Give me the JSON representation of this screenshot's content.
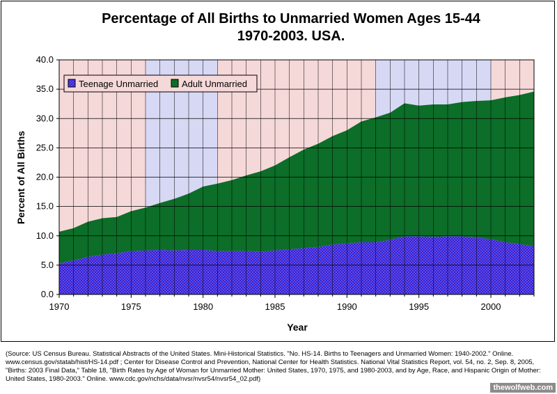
{
  "chart_data": {
    "type": "area",
    "stacked": true,
    "title_line1": "Percentage of All Births to Unmarried Women Ages 15-44",
    "title_line2": "1970-2003. USA.",
    "xlabel": "Year",
    "ylabel": "Percent of All Births",
    "xlim": [
      1970,
      2003
    ],
    "ylim": [
      0,
      40
    ],
    "x_ticks": [
      "1970",
      "1975",
      "1980",
      "1985",
      "1990",
      "1995",
      "2000"
    ],
    "y_ticks": [
      "0.0",
      "5.0",
      "10.0",
      "15.0",
      "20.0",
      "25.0",
      "30.0",
      "35.0",
      "40.0"
    ],
    "grid": true,
    "legend_position": "top-left",
    "x": [
      1970,
      1971,
      1972,
      1973,
      1974,
      1975,
      1976,
      1977,
      1978,
      1979,
      1980,
      1981,
      1982,
      1983,
      1984,
      1985,
      1986,
      1987,
      1988,
      1989,
      1990,
      1991,
      1992,
      1993,
      1994,
      1995,
      1996,
      1997,
      1998,
      1999,
      2000,
      2001,
      2002,
      2003
    ],
    "series": [
      {
        "name": "Teenage Unmarried",
        "values": [
          5.3,
          5.8,
          6.4,
          6.8,
          7.0,
          7.4,
          7.5,
          7.6,
          7.5,
          7.6,
          7.6,
          7.4,
          7.4,
          7.4,
          7.3,
          7.5,
          7.7,
          7.9,
          8.1,
          8.5,
          8.7,
          8.9,
          8.9,
          9.3,
          9.9,
          9.9,
          9.8,
          9.9,
          9.9,
          9.7,
          9.4,
          8.9,
          8.6,
          8.2
        ],
        "color": "#2626e0"
      },
      {
        "name": "Adult Unmarried",
        "values": [
          5.4,
          5.5,
          6.0,
          6.2,
          6.2,
          6.8,
          7.3,
          8.0,
          8.8,
          9.6,
          10.8,
          11.5,
          12.1,
          12.9,
          13.7,
          14.5,
          15.7,
          16.8,
          17.6,
          18.5,
          19.3,
          20.6,
          21.3,
          21.7,
          22.7,
          22.3,
          22.6,
          22.5,
          22.9,
          23.3,
          23.7,
          24.7,
          25.4,
          26.4
        ],
        "color": "#0c6e28"
      }
    ],
    "background_bands": [
      {
        "from": 1970,
        "to": 1976,
        "color": "#f5d8d8"
      },
      {
        "from": 1976,
        "to": 1981,
        "color": "#d7d8f4"
      },
      {
        "from": 1981,
        "to": 1992,
        "color": "#f5d8d8"
      },
      {
        "from": 1992,
        "to": 2000,
        "color": "#d7d8f4"
      },
      {
        "from": 2000,
        "to": 2003,
        "color": "#f5d8d8"
      }
    ],
    "source": "(Source: US Census Bureau. Statistical Abstracts of the United States. Mini-Historical Statistics. \"No. HS-14. Births to Teenagers and Unmarried Women: 1940-2002.\" Online. www.census.gov/statab/hist/HS-14.pdf ; Center for Disease Control and Prevention, National Center for Health Statistics. National Vital Statistics Report, vol. 54, no. 2, Sep. 8, 2005, \"Births: 2003 Final Data,\" Table 18, \"Birth Rates by Age of Woman for Unmarried Mother: United States, 1970, 1975, and 1980-2003, and by Age, Race, and Hispanic Origin of Mother: United States, 1980-2003.\" Online. www.cdc.gov/nchs/data/nvsr/nvsr54/nvsr54_02.pdf)",
    "watermark": "thewolfweb.com"
  }
}
